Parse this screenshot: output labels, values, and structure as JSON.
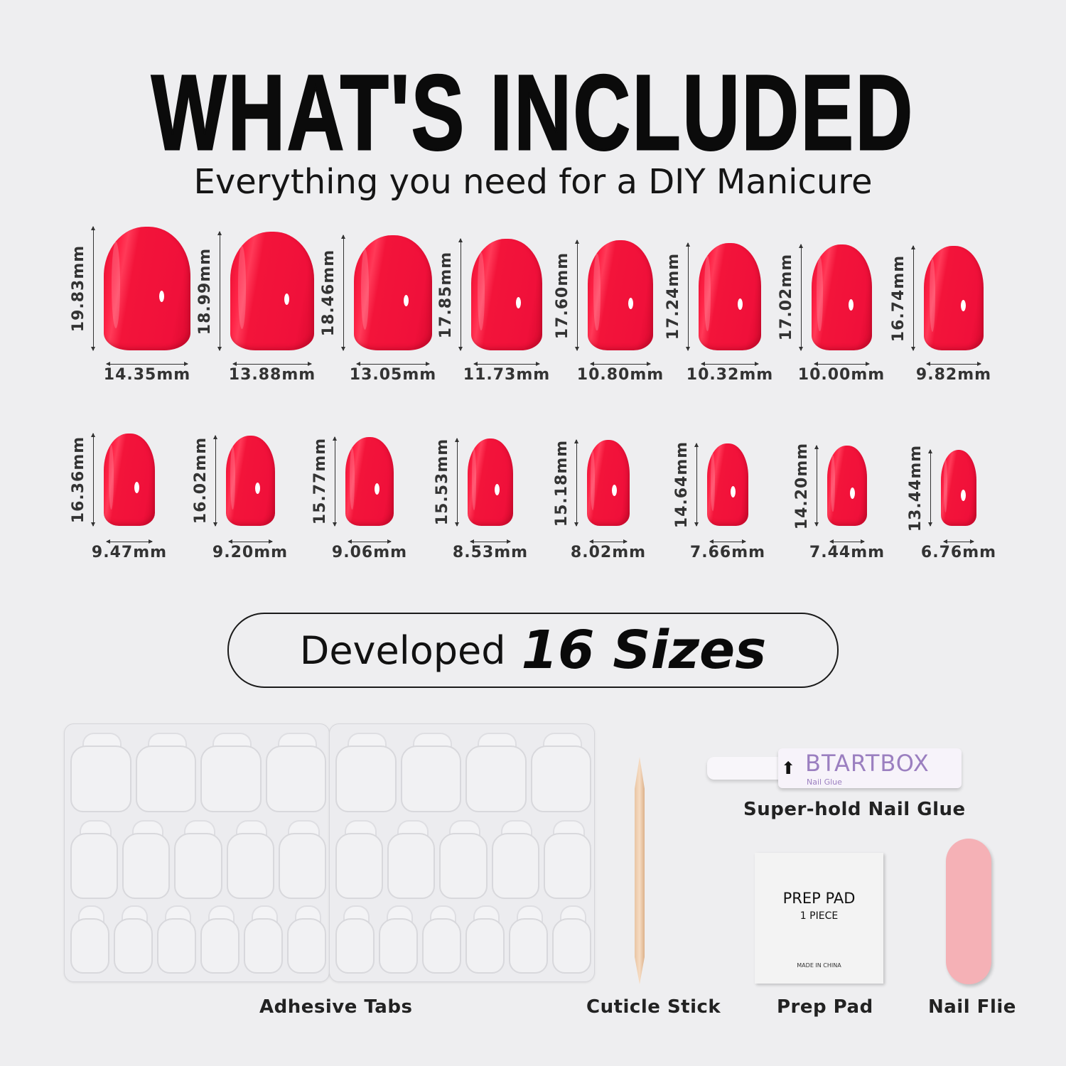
{
  "header": {
    "title": "WHAT'S INCLUDED",
    "subtitle": "Everything you need for a DIY Manicure"
  },
  "nail_color": "#f2123a",
  "nail_sizes": [
    {
      "length": "19.83mm",
      "width": "14.35mm"
    },
    {
      "length": "18.99mm",
      "width": "13.88mm"
    },
    {
      "length": "18.46mm",
      "width": "13.05mm"
    },
    {
      "length": "17.85mm",
      "width": "11.73mm"
    },
    {
      "length": "17.60mm",
      "width": "10.80mm"
    },
    {
      "length": "17.24mm",
      "width": "10.32mm"
    },
    {
      "length": "17.02mm",
      "width": "10.00mm"
    },
    {
      "length": "16.74mm",
      "width": "9.82mm"
    },
    {
      "length": "16.36mm",
      "width": "9.47mm"
    },
    {
      "length": "16.02mm",
      "width": "9.20mm"
    },
    {
      "length": "15.77mm",
      "width": "9.06mm"
    },
    {
      "length": "15.53mm",
      "width": "8.53mm"
    },
    {
      "length": "15.18mm",
      "width": "8.02mm"
    },
    {
      "length": "14.64mm",
      "width": "7.66mm"
    },
    {
      "length": "14.20mm",
      "width": "7.44mm"
    },
    {
      "length": "13.44mm",
      "width": "6.76mm"
    }
  ],
  "badge": {
    "prefix": "Developed",
    "emphasis": "16 Sizes"
  },
  "items": {
    "adhesive_tabs": "Adhesive Tabs",
    "cuticle_stick": "Cuticle Stick",
    "nail_glue": "Super-hold Nail Glue",
    "prep_pad": "Prep Pad",
    "nail_file": "Nail Flie"
  },
  "glue_pen": {
    "brand": "BTARTBOX",
    "product": "Nail Glue"
  },
  "prep_pad_packet": {
    "line1": "PREP PAD",
    "line2": "1 PIECE",
    "line3": "MADE IN CHINA"
  },
  "nail_file_color": "#f5b1b6"
}
